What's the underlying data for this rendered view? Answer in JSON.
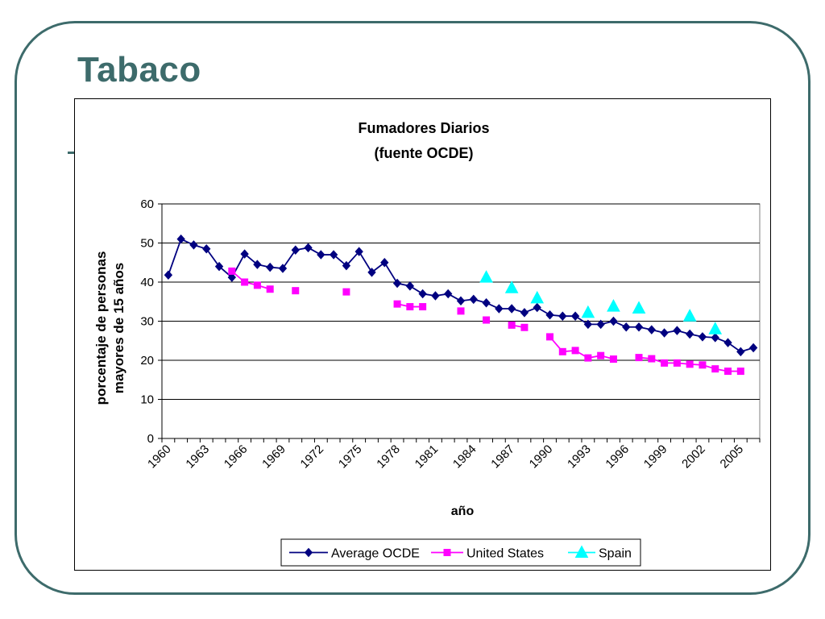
{
  "slide": {
    "title": "Tabaco"
  },
  "colors": {
    "frame": "#3d6b6b",
    "average": "#000080",
    "us": "#ff00ff",
    "spain": "#00ffff"
  },
  "chart_data": {
    "type": "line",
    "title_line1": "Fumadores Diarios",
    "title_line2": "(fuente OCDE)",
    "xlabel": "año",
    "ylabel_line1": "porcentaje de personas",
    "ylabel_line2": "mayores de 15 años",
    "ylim": [
      0,
      60
    ],
    "yticks": [
      0,
      10,
      20,
      30,
      40,
      50,
      60
    ],
    "xlim": [
      1960,
      2007
    ],
    "xtick_labels": [
      "1960",
      "1963",
      "1966",
      "1969",
      "1972",
      "1975",
      "1978",
      "1981",
      "1984",
      "1987",
      "1990",
      "1993",
      "1996",
      "1999",
      "2002",
      "2005"
    ],
    "grid": "horizontal",
    "legend_position": "bottom",
    "series": [
      {
        "name": "Average OCDE",
        "marker": "diamond",
        "points": [
          [
            1960,
            41.8
          ],
          [
            1961,
            51.0
          ],
          [
            1962,
            49.5
          ],
          [
            1963,
            48.5
          ],
          [
            1964,
            44.0
          ],
          [
            1965,
            41.2
          ],
          [
            1966,
            47.2
          ],
          [
            1967,
            44.5
          ],
          [
            1968,
            43.8
          ],
          [
            1969,
            43.5
          ],
          [
            1970,
            48.2
          ],
          [
            1971,
            48.8
          ],
          [
            1972,
            47.0
          ],
          [
            1973,
            47.0
          ],
          [
            1974,
            44.2
          ],
          [
            1975,
            47.8
          ],
          [
            1976,
            42.5
          ],
          [
            1977,
            45.0
          ],
          [
            1978,
            39.7
          ],
          [
            1979,
            39.0
          ],
          [
            1980,
            37.0
          ],
          [
            1981,
            36.5
          ],
          [
            1982,
            37.0
          ],
          [
            1983,
            35.2
          ],
          [
            1984,
            35.6
          ],
          [
            1985,
            34.7
          ],
          [
            1986,
            33.2
          ],
          [
            1987,
            33.2
          ],
          [
            1988,
            32.2
          ],
          [
            1989,
            33.5
          ],
          [
            1990,
            31.6
          ],
          [
            1991,
            31.3
          ],
          [
            1992,
            31.3
          ],
          [
            1993,
            29.2
          ],
          [
            1994,
            29.2
          ],
          [
            1995,
            30.0
          ],
          [
            1996,
            28.5
          ],
          [
            1997,
            28.5
          ],
          [
            1998,
            27.8
          ],
          [
            1999,
            27.0
          ],
          [
            2000,
            27.6
          ],
          [
            2001,
            26.7
          ],
          [
            2002,
            26.0
          ],
          [
            2003,
            25.8
          ],
          [
            2004,
            24.5
          ],
          [
            2005,
            22.2
          ],
          [
            2006,
            23.2
          ]
        ]
      },
      {
        "name": "United States",
        "marker": "square",
        "points": [
          [
            1965,
            42.8
          ],
          [
            1966,
            40.0
          ],
          [
            1967,
            39.2
          ],
          [
            1968,
            38.2
          ],
          [
            1970,
            37.8
          ],
          [
            1974,
            37.5
          ],
          [
            1978,
            34.4
          ],
          [
            1979,
            33.7
          ],
          [
            1980,
            33.7
          ],
          [
            1983,
            32.6
          ],
          [
            1985,
            30.3
          ],
          [
            1987,
            29.0
          ],
          [
            1988,
            28.4
          ],
          [
            1990,
            26.0
          ],
          [
            1991,
            22.2
          ],
          [
            1992,
            22.5
          ],
          [
            1993,
            20.6
          ],
          [
            1994,
            21.2
          ],
          [
            1995,
            20.3
          ],
          [
            1997,
            20.7
          ],
          [
            1998,
            20.4
          ],
          [
            1999,
            19.3
          ],
          [
            2000,
            19.3
          ],
          [
            2001,
            19.0
          ],
          [
            2002,
            18.8
          ],
          [
            2003,
            17.8
          ],
          [
            2004,
            17.2
          ],
          [
            2005,
            17.2
          ]
        ]
      },
      {
        "name": "Spain",
        "marker": "triangle",
        "points": [
          [
            1985,
            41.2
          ],
          [
            1987,
            38.5
          ],
          [
            1989,
            35.9
          ],
          [
            1993,
            32.2
          ],
          [
            1995,
            33.8
          ],
          [
            1997,
            33.3
          ],
          [
            2001,
            31.3
          ],
          [
            2003,
            28.0
          ]
        ]
      }
    ]
  }
}
